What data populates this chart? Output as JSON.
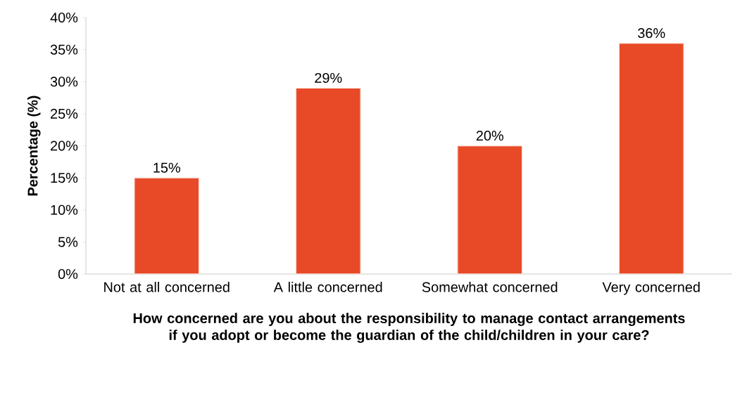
{
  "chart_data": {
    "type": "bar",
    "xlabel": "How concerned are you about the responsibility to manage contact arrangements if you adopt or become the guardian of the child/children in your care?",
    "ylabel": "Percentage (%)",
    "categories": [
      "Not at all concerned",
      "A little concerned",
      "Somewhat concerned",
      "Very concerned"
    ],
    "values": [
      15,
      29,
      20,
      36
    ],
    "value_labels": [
      "15%",
      "29%",
      "20%",
      "36%"
    ],
    "color": "#e84a27",
    "ylim": [
      0,
      40
    ],
    "yticks": [
      {
        "value": 0,
        "label": "0%"
      },
      {
        "value": 5,
        "label": "5%"
      },
      {
        "value": 10,
        "label": "10%"
      },
      {
        "value": 15,
        "label": "15%"
      },
      {
        "value": 20,
        "label": "20%"
      },
      {
        "value": 25,
        "label": "25%"
      },
      {
        "value": 30,
        "label": "30%"
      },
      {
        "value": 35,
        "label": "35%"
      },
      {
        "value": 40,
        "label": "40%"
      }
    ]
  }
}
